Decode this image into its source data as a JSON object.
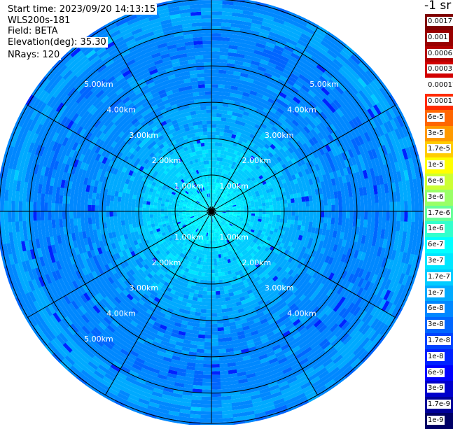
{
  "header": {
    "start_time": "Start time: 2023/09/20 14:13:15",
    "instrument": "WLS200s-181",
    "field": "Field: BETA",
    "elevation": "Elevation(deg): 35.30",
    "nrays": "NRays: 120"
  },
  "colorbar": {
    "unit_label": "-1 sr",
    "entries": [
      {
        "label": "0.0017",
        "color": "#800000"
      },
      {
        "label": "0.001",
        "color": "#9a0000"
      },
      {
        "label": "0.0006",
        "color": "#b40000"
      },
      {
        "label": "0.0003",
        "color": "#d20000"
      },
      {
        "label": "0.00017",
        "color": "#ffffff"
      },
      {
        "label": "0.0001",
        "color": "#ff2a00"
      },
      {
        "label": "6e-5",
        "color": "#ff6600"
      },
      {
        "label": "3e-5",
        "color": "#ff9900"
      },
      {
        "label": "1.7e-5",
        "color": "#ffcc00"
      },
      {
        "label": "1e-5",
        "color": "#ffff00"
      },
      {
        "label": "6e-6",
        "color": "#ccff33"
      },
      {
        "label": "3e-6",
        "color": "#99ff66"
      },
      {
        "label": "1.7e-6",
        "color": "#66ff99"
      },
      {
        "label": "1e-6",
        "color": "#33ffcc"
      },
      {
        "label": "6e-7",
        "color": "#00ffff"
      },
      {
        "label": "3e-7",
        "color": "#00e6ff"
      },
      {
        "label": "1.7e-7",
        "color": "#00ccff"
      },
      {
        "label": "1e-7",
        "color": "#00aaff"
      },
      {
        "label": "6e-8",
        "color": "#0088ff"
      },
      {
        "label": "3e-8",
        "color": "#0066ff"
      },
      {
        "label": "1.7e-8",
        "color": "#0044ff"
      },
      {
        "label": "1e-8",
        "color": "#0022ff"
      },
      {
        "label": "6e-9",
        "color": "#0000ff"
      },
      {
        "label": "3e-9",
        "color": "#0000cc"
      },
      {
        "label": "1.7e-9",
        "color": "#000099"
      },
      {
        "label": "1e-9",
        "color": "#000066"
      }
    ]
  },
  "chart_data": {
    "type": "heatmap",
    "projection": "polar (PPI)",
    "field": "BETA",
    "elevation_deg": 35.3,
    "n_rays": 120,
    "range_rings_km": [
      1,
      2,
      3,
      4,
      5
    ],
    "ring_labels": [
      "1.00km",
      "2.00km",
      "3.00km",
      "4.00km",
      "5.00km"
    ],
    "max_range_km": 5.85,
    "azimuth_spokes_deg": [
      0,
      30,
      60,
      90,
      120,
      150,
      180,
      210,
      240,
      270,
      300,
      330
    ],
    "dominant_value_range": [
      "1e-8",
      "3e-7"
    ],
    "near_center_value": "3e-7",
    "outer_value": "3e-8"
  }
}
